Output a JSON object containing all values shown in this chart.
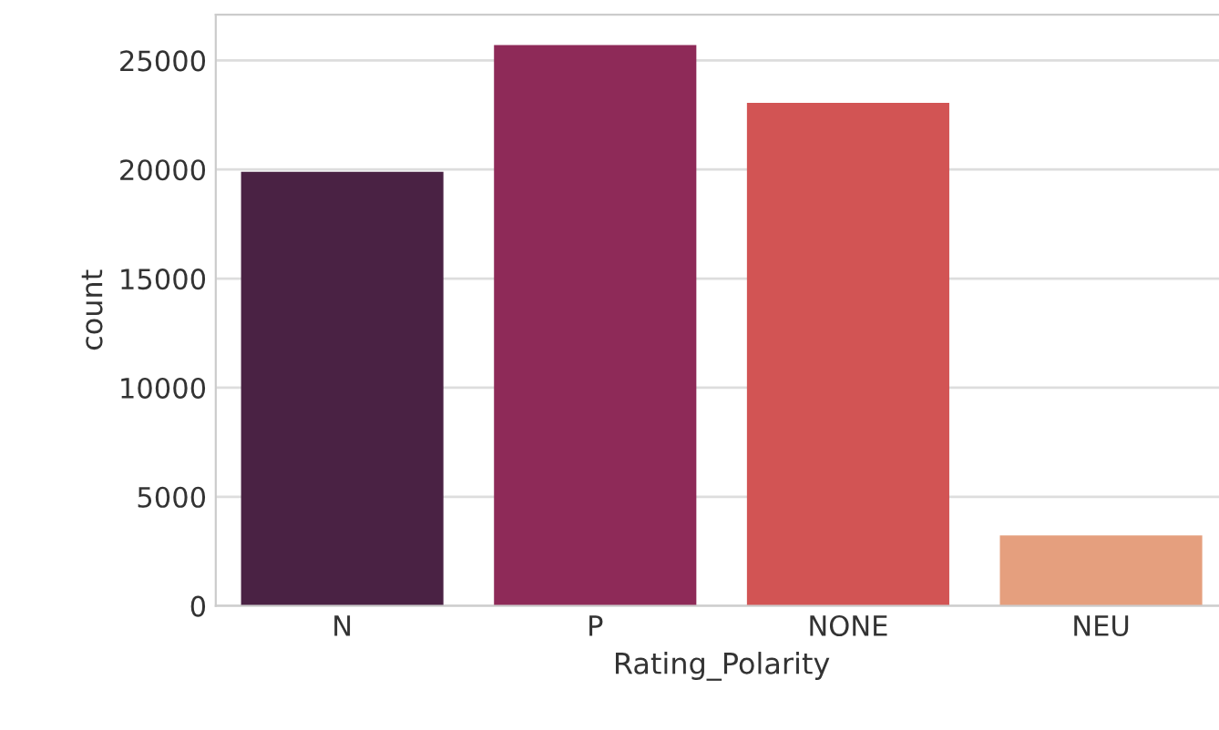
{
  "chart_data": {
    "type": "bar",
    "xlabel": "Rating_Polarity",
    "ylabel": "count",
    "categories": [
      "N",
      "P",
      "NONE",
      "NEU"
    ],
    "values": [
      19900,
      25700,
      23050,
      3230
    ],
    "colors": [
      "#4a2244",
      "#8e2a58",
      "#d25454",
      "#e59f7e"
    ],
    "ylim": [
      0,
      27100
    ],
    "yticks": [
      0,
      5000,
      10000,
      15000,
      20000,
      25000
    ],
    "grid": "y"
  }
}
